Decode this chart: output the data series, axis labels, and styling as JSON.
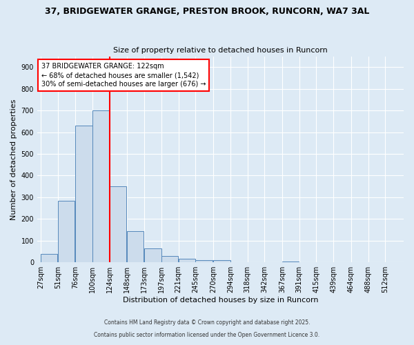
{
  "title1": "37, BRIDGEWATER GRANGE, PRESTON BROOK, RUNCORN, WA7 3AL",
  "title2": "Size of property relative to detached houses in Runcorn",
  "xlabel": "Distribution of detached houses by size in Runcorn",
  "ylabel": "Number of detached properties",
  "bar_color": "#ccdcec",
  "bar_edge_color": "#5588bb",
  "background_color": "#ddeaf5",
  "grid_color": "#ffffff",
  "fig_facecolor": "#ddeaf5",
  "red_line_x": 124,
  "annotation_title": "37 BRIDGEWATER GRANGE: 122sqm",
  "annotation_line1": "← 68% of detached houses are smaller (1,542)",
  "annotation_line2": "30% of semi-detached houses are larger (676) →",
  "bins": [
    27,
    51,
    76,
    100,
    124,
    148,
    173,
    197,
    221,
    245,
    270,
    294,
    318,
    342,
    367,
    391,
    415,
    439,
    464,
    488,
    512
  ],
  "heights": [
    40,
    285,
    630,
    700,
    350,
    145,
    65,
    30,
    15,
    10,
    10,
    0,
    0,
    0,
    5,
    0,
    0,
    0,
    0,
    0
  ],
  "bin_width": 24,
  "ylim": [
    0,
    950
  ],
  "yticks": [
    0,
    100,
    200,
    300,
    400,
    500,
    600,
    700,
    800,
    900
  ],
  "footer1": "Contains HM Land Registry data © Crown copyright and database right 2025.",
  "footer2": "Contains public sector information licensed under the Open Government Licence 3.0."
}
